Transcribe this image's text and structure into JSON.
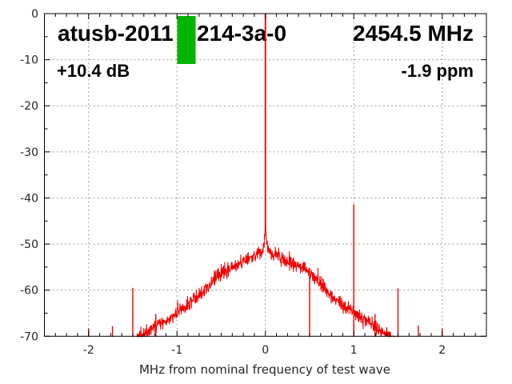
{
  "header": {
    "title_left": "atusb-2011",
    "title_mid": "214-3a-0",
    "title_right": "2454.5 MHz",
    "gain": "+10.4 dB",
    "offset": "-1.9 ppm",
    "marker_color": "#00b400"
  },
  "chart_data": {
    "type": "line",
    "xlabel": "MHz from nominal frequency of test wave",
    "ylabel": "",
    "xlim": [
      -2.5,
      2.5
    ],
    "ylim": [
      -70,
      0
    ],
    "x_major_ticks": [
      {
        "v": -2,
        "label": "-2"
      },
      {
        "v": -1,
        "label": "-1"
      },
      {
        "v": 0,
        "label": "0"
      },
      {
        "v": 1,
        "label": "1"
      },
      {
        "v": 2,
        "label": "2"
      }
    ],
    "y_major_ticks": [
      {
        "v": 0,
        "label": "0"
      },
      {
        "v": -10,
        "label": "-10"
      },
      {
        "v": -20,
        "label": "-20"
      },
      {
        "v": -30,
        "label": "-30"
      },
      {
        "v": -40,
        "label": "-40"
      },
      {
        "v": -50,
        "label": "-50"
      },
      {
        "v": -60,
        "label": "-60"
      },
      {
        "v": -70,
        "label": "-70"
      }
    ],
    "x_minor_step": 0.125,
    "y_minor_step": 5,
    "grid": true,
    "legend": "none",
    "trace_color": "#f00000",
    "grid_color": "#999999",
    "axis_color": "#000000",
    "carrier_peak": {
      "x": 0.0,
      "db": 0.0
    },
    "spurs": [
      {
        "x": -2.0,
        "db": -68.3
      },
      {
        "x": -1.73,
        "db": -67.8
      },
      {
        "x": -1.5,
        "db": -59.5
      },
      {
        "x": -1.24,
        "db": -65.2
      },
      {
        "x": 0.5,
        "db": -55.2
      },
      {
        "x": 1.0,
        "db": -41.4
      },
      {
        "x": 1.24,
        "db": -65.2
      },
      {
        "x": 1.5,
        "db": -59.6
      },
      {
        "x": 1.73,
        "db": -67.7
      },
      {
        "x": 2.0,
        "db": -68.3
      }
    ],
    "noise_envelope": [
      [
        -1.52,
        -71.8
      ],
      [
        -1.45,
        -70.6
      ],
      [
        -1.4,
        -69.9
      ],
      [
        -1.3,
        -68.7
      ],
      [
        -1.2,
        -67.4
      ],
      [
        -1.1,
        -66.2
      ],
      [
        -1.0,
        -64.8
      ],
      [
        -0.9,
        -63.7
      ],
      [
        -0.8,
        -62.0
      ],
      [
        -0.7,
        -60.2
      ],
      [
        -0.6,
        -57.9
      ],
      [
        -0.5,
        -56.2
      ],
      [
        -0.4,
        -55.1
      ],
      [
        -0.3,
        -54.1
      ],
      [
        -0.2,
        -53.2
      ],
      [
        -0.12,
        -52.5
      ],
      [
        -0.06,
        -51.9
      ],
      [
        -0.03,
        -51.0
      ],
      [
        -0.015,
        -49.6
      ],
      [
        -0.007,
        -47.6
      ],
      [
        0.0,
        -46.8
      ],
      [
        0.007,
        -47.6
      ],
      [
        0.015,
        -49.6
      ],
      [
        0.03,
        -51.0
      ],
      [
        0.06,
        -51.9
      ],
      [
        0.12,
        -52.5
      ],
      [
        0.2,
        -53.2
      ],
      [
        0.3,
        -54.1
      ],
      [
        0.4,
        -55.1
      ],
      [
        0.5,
        -56.2
      ],
      [
        0.6,
        -57.9
      ],
      [
        0.7,
        -60.2
      ],
      [
        0.8,
        -62.0
      ],
      [
        0.9,
        -63.7
      ],
      [
        1.0,
        -64.8
      ],
      [
        1.1,
        -66.2
      ],
      [
        1.2,
        -67.4
      ],
      [
        1.3,
        -68.7
      ],
      [
        1.4,
        -69.9
      ],
      [
        1.45,
        -70.6
      ],
      [
        1.52,
        -71.8
      ]
    ],
    "noise_amplitude_db": 1.5
  }
}
